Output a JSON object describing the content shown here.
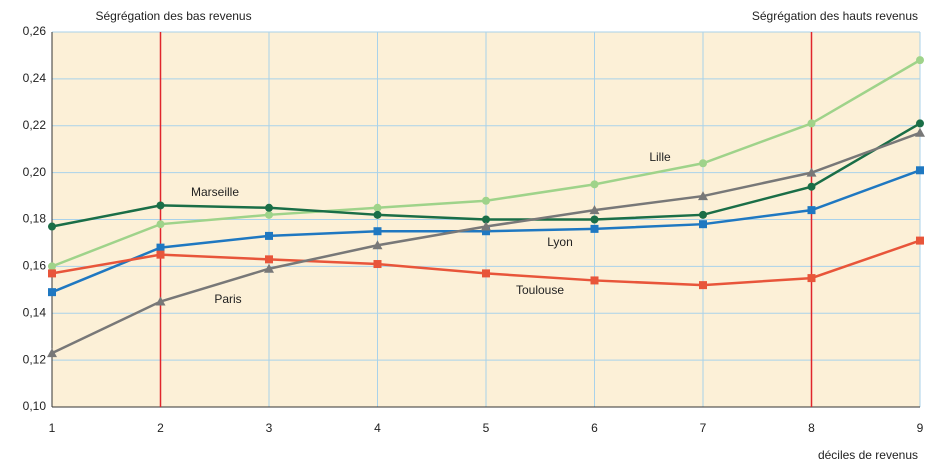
{
  "chart_data": {
    "type": "line",
    "x_label": "déciles de revenus",
    "x": [
      1,
      2,
      3,
      4,
      5,
      6,
      7,
      8,
      9
    ],
    "xlim": [
      1,
      9
    ],
    "xticks": [
      1,
      2,
      3,
      4,
      5,
      6,
      7,
      8,
      9
    ],
    "ylim": [
      0.1,
      0.26
    ],
    "yticks": [
      {
        "value": 0.1,
        "label": "0,10"
      },
      {
        "value": 0.12,
        "label": "0,12"
      },
      {
        "value": 0.14,
        "label": "0,14"
      },
      {
        "value": 0.16,
        "label": "0,16"
      },
      {
        "value": 0.18,
        "label": "0,18"
      },
      {
        "value": 0.2,
        "label": "0,20"
      },
      {
        "value": 0.22,
        "label": "0,22"
      },
      {
        "value": 0.24,
        "label": "0,24"
      },
      {
        "value": 0.26,
        "label": "0,26"
      }
    ],
    "grid": true,
    "vlines": [
      {
        "x": 2,
        "label": "Ségrégation des bas revenus",
        "color": "#e0252b"
      },
      {
        "x": 8,
        "label": "Ségrégation des hauts revenus",
        "color": "#e0252b"
      }
    ],
    "series": [
      {
        "name": "Lille",
        "color": "#9fd38a",
        "marker": "circle",
        "values": [
          0.16,
          0.178,
          0.182,
          0.185,
          0.188,
          0.195,
          0.204,
          0.221,
          0.248
        ]
      },
      {
        "name": "Marseille",
        "color": "#1a6e47",
        "marker": "circle",
        "values": [
          0.177,
          0.186,
          0.185,
          0.182,
          0.18,
          0.18,
          0.182,
          0.194,
          0.221
        ]
      },
      {
        "name": "Lyon",
        "color": "#1f78c1",
        "marker": "square",
        "values": [
          0.149,
          0.168,
          0.173,
          0.175,
          0.175,
          0.176,
          0.178,
          0.184,
          0.201
        ]
      },
      {
        "name": "Toulouse",
        "color": "#e8553a",
        "marker": "square",
        "values": [
          0.157,
          0.165,
          0.163,
          0.161,
          0.157,
          0.154,
          0.152,
          0.155,
          0.171
        ]
      },
      {
        "name": "Paris",
        "color": "#787878",
        "marker": "triangle",
        "values": [
          0.123,
          0.145,
          0.159,
          0.169,
          0.177,
          0.184,
          0.19,
          0.2,
          0.217
        ]
      }
    ]
  }
}
